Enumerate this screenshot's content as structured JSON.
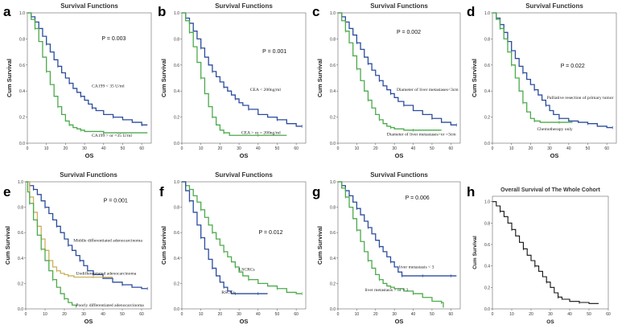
{
  "figure": {
    "background": "#ffffff"
  },
  "chart_data": [
    {
      "id": "a",
      "panel_label": "a",
      "type": "line",
      "title": "Survival Functions",
      "xlabel": "OS",
      "ylabel": "Cum Survival",
      "xlim": [
        0,
        65
      ],
      "ylim": [
        0,
        1
      ],
      "xticks": [
        "0",
        "10",
        "20",
        "30",
        "40",
        "50",
        "60"
      ],
      "yticks": [
        "0.0",
        "0.2",
        "0.4",
        "0.6",
        "0.8",
        "1.0"
      ],
      "p_value": "P = 0.003",
      "series": [
        {
          "name": "CA199 < 35 U/ml",
          "color": "#2b4c9c",
          "x": [
            0,
            2,
            4,
            6,
            8,
            10,
            12,
            14,
            16,
            18,
            20,
            22,
            24,
            26,
            28,
            30,
            32,
            34,
            36,
            40,
            45,
            50,
            55,
            60,
            63
          ],
          "y": [
            1,
            0.97,
            0.93,
            0.88,
            0.82,
            0.76,
            0.7,
            0.64,
            0.59,
            0.54,
            0.5,
            0.46,
            0.42,
            0.39,
            0.36,
            0.33,
            0.3,
            0.27,
            0.25,
            0.22,
            0.2,
            0.18,
            0.16,
            0.14,
            0.14
          ]
        },
        {
          "name": "CA199 > or =35 U/ml",
          "color": "#4caa4c",
          "x": [
            0,
            2,
            4,
            6,
            8,
            10,
            12,
            14,
            16,
            18,
            20,
            22,
            24,
            26,
            28,
            30,
            35,
            40,
            50,
            63
          ],
          "y": [
            1,
            0.95,
            0.88,
            0.78,
            0.66,
            0.55,
            0.45,
            0.36,
            0.28,
            0.22,
            0.17,
            0.14,
            0.12,
            0.11,
            0.1,
            0.09,
            0.09,
            0.08,
            0.08,
            0.08
          ]
        }
      ]
    },
    {
      "id": "b",
      "panel_label": "b",
      "type": "line",
      "title": "Survival Functions",
      "xlabel": "OS",
      "ylabel": "Cum Survival",
      "xlim": [
        0,
        65
      ],
      "ylim": [
        0,
        1
      ],
      "xticks": [
        "0",
        "10",
        "20",
        "30",
        "40",
        "50",
        "60"
      ],
      "yticks": [
        "0.0",
        "0.2",
        "0.4",
        "0.6",
        "0.8",
        "1.0"
      ],
      "p_value": "P = 0.001",
      "series": [
        {
          "name": "CEA < 200ng/ml",
          "color": "#2b4c9c",
          "x": [
            0,
            2,
            4,
            6,
            8,
            10,
            12,
            14,
            16,
            18,
            20,
            22,
            24,
            26,
            28,
            30,
            32,
            35,
            40,
            45,
            50,
            55,
            60,
            63
          ],
          "y": [
            1,
            0.96,
            0.92,
            0.86,
            0.8,
            0.73,
            0.66,
            0.6,
            0.55,
            0.51,
            0.47,
            0.43,
            0.4,
            0.37,
            0.34,
            0.31,
            0.29,
            0.26,
            0.22,
            0.2,
            0.18,
            0.15,
            0.13,
            0.13
          ]
        },
        {
          "name": "CEA > or = 200ng/ml",
          "color": "#4caa4c",
          "x": [
            0,
            2,
            4,
            6,
            8,
            10,
            12,
            14,
            16,
            18,
            20,
            22,
            25,
            30,
            40,
            55
          ],
          "y": [
            1,
            0.94,
            0.85,
            0.74,
            0.62,
            0.5,
            0.38,
            0.28,
            0.2,
            0.14,
            0.1,
            0.08,
            0.06,
            0.06,
            0.06,
            0.06
          ]
        }
      ]
    },
    {
      "id": "c",
      "panel_label": "c",
      "type": "line",
      "title": "Survival Functions",
      "xlabel": "OS",
      "ylabel": "Cum Survival",
      "xlim": [
        0,
        65
      ],
      "ylim": [
        0,
        1
      ],
      "xticks": [
        "0",
        "10",
        "20",
        "30",
        "40",
        "50",
        "60"
      ],
      "yticks": [
        "0.0",
        "0.2",
        "0.4",
        "0.6",
        "0.8",
        "1.0"
      ],
      "p_value": "P = 0.002",
      "series": [
        {
          "name": "Diameter of liver metastases<3cm",
          "color": "#2b4c9c",
          "x": [
            0,
            2,
            4,
            6,
            8,
            10,
            12,
            14,
            16,
            18,
            20,
            22,
            24,
            26,
            28,
            30,
            32,
            35,
            40,
            45,
            50,
            55,
            60,
            63
          ],
          "y": [
            1,
            0.97,
            0.93,
            0.88,
            0.83,
            0.77,
            0.72,
            0.66,
            0.61,
            0.56,
            0.52,
            0.48,
            0.44,
            0.41,
            0.38,
            0.35,
            0.32,
            0.29,
            0.25,
            0.22,
            0.19,
            0.16,
            0.14,
            0.14
          ]
        },
        {
          "name": "Diameter of liver metastases>or =3cm",
          "color": "#4caa4c",
          "x": [
            0,
            2,
            4,
            6,
            8,
            10,
            12,
            14,
            16,
            18,
            20,
            22,
            24,
            26,
            28,
            30,
            35,
            40,
            45,
            55
          ],
          "y": [
            1,
            0.94,
            0.86,
            0.77,
            0.67,
            0.57,
            0.48,
            0.4,
            0.33,
            0.27,
            0.22,
            0.18,
            0.15,
            0.13,
            0.12,
            0.11,
            0.1,
            0.1,
            0.1,
            0.1
          ]
        }
      ]
    },
    {
      "id": "d",
      "panel_label": "d",
      "type": "line",
      "title": "Survival Functions",
      "xlabel": "OS",
      "ylabel": "Cum Survival",
      "xlim": [
        0,
        65
      ],
      "ylim": [
        0,
        1
      ],
      "xticks": [
        "0",
        "10",
        "20",
        "30",
        "40",
        "50",
        "60"
      ],
      "yticks": [
        "0.0",
        "0.2",
        "0.4",
        "0.6",
        "0.8",
        "1.0"
      ],
      "p_value": "P = 0.022",
      "series": [
        {
          "name": "Palliative resection of primary tumor",
          "color": "#2b4c9c",
          "x": [
            0,
            2,
            4,
            6,
            8,
            10,
            12,
            14,
            16,
            18,
            20,
            22,
            24,
            26,
            28,
            30,
            32,
            35,
            40,
            45,
            50,
            55,
            60,
            63
          ],
          "y": [
            1,
            0.96,
            0.91,
            0.85,
            0.78,
            0.71,
            0.65,
            0.59,
            0.54,
            0.49,
            0.45,
            0.41,
            0.37,
            0.33,
            0.29,
            0.25,
            0.22,
            0.19,
            0.17,
            0.16,
            0.15,
            0.13,
            0.12,
            0.12
          ]
        },
        {
          "name": "Chemotherapy only",
          "color": "#4caa4c",
          "x": [
            0,
            2,
            4,
            6,
            8,
            10,
            12,
            14,
            16,
            18,
            20,
            22,
            25,
            30,
            35,
            40,
            42
          ],
          "y": [
            1,
            0.95,
            0.88,
            0.8,
            0.7,
            0.6,
            0.5,
            0.4,
            0.31,
            0.24,
            0.19,
            0.17,
            0.16,
            0.16,
            0.16,
            0.16,
            0.16
          ]
        }
      ]
    },
    {
      "id": "e",
      "panel_label": "e",
      "type": "line",
      "title": "Survival Functions",
      "xlabel": "OS",
      "ylabel": "Cum Survival",
      "xlim": [
        0,
        65
      ],
      "ylim": [
        0,
        1
      ],
      "xticks": [
        "0",
        "10",
        "20",
        "30",
        "40",
        "50",
        "60"
      ],
      "yticks": [
        "0.0",
        "0.2",
        "0.4",
        "0.6",
        "0.8",
        "1.0"
      ],
      "p_value": "P = 0.001",
      "series": [
        {
          "name": "Middle differentiated adenocarcinoma",
          "color": "#2b4c9c",
          "x": [
            0,
            2,
            4,
            6,
            8,
            10,
            12,
            14,
            16,
            18,
            20,
            22,
            24,
            26,
            28,
            30,
            32,
            35,
            40,
            45,
            50,
            55,
            60,
            63
          ],
          "y": [
            1,
            0.97,
            0.94,
            0.9,
            0.85,
            0.8,
            0.75,
            0.7,
            0.65,
            0.6,
            0.55,
            0.5,
            0.46,
            0.42,
            0.38,
            0.34,
            0.3,
            0.27,
            0.24,
            0.21,
            0.19,
            0.17,
            0.16,
            0.16
          ]
        },
        {
          "name": "Undifferentiated adenocarcinoma",
          "color": "#c9b15a",
          "x": [
            0,
            2,
            4,
            6,
            8,
            10,
            12,
            14,
            16,
            18,
            20,
            22,
            25,
            30,
            35,
            40,
            45
          ],
          "y": [
            1,
            0.88,
            0.76,
            0.65,
            0.55,
            0.46,
            0.38,
            0.33,
            0.3,
            0.28,
            0.27,
            0.26,
            0.25,
            0.25,
            0.25,
            0.25,
            0.25
          ]
        },
        {
          "name": "Poorly differentiated adenocarcinoma",
          "color": "#4caa4c",
          "x": [
            0,
            1,
            2,
            4,
            6,
            8,
            10,
            12,
            14,
            16,
            18,
            20,
            22,
            24,
            26
          ],
          "y": [
            1,
            0.92,
            0.83,
            0.7,
            0.58,
            0.47,
            0.38,
            0.3,
            0.23,
            0.17,
            0.12,
            0.08,
            0.05,
            0.03,
            0.02
          ]
        }
      ]
    },
    {
      "id": "f",
      "panel_label": "f",
      "type": "line",
      "title": "Survival Functions",
      "xlabel": "OS",
      "ylabel": "Cum Survival",
      "xlim": [
        0,
        65
      ],
      "ylim": [
        0,
        1
      ],
      "xticks": [
        "0",
        "10",
        "20",
        "30",
        "40",
        "50",
        "60"
      ],
      "yticks": [
        "0.0",
        "0.2",
        "0.4",
        "0.6",
        "0.8",
        "1.0"
      ],
      "p_value": "P = 0.012",
      "series": [
        {
          "name": "LSCRCs",
          "color": "#4caa4c",
          "x": [
            0,
            2,
            4,
            6,
            8,
            10,
            12,
            14,
            16,
            18,
            20,
            22,
            24,
            26,
            28,
            30,
            32,
            35,
            40,
            45,
            50,
            55,
            60,
            63
          ],
          "y": [
            1,
            0.97,
            0.94,
            0.89,
            0.84,
            0.78,
            0.72,
            0.66,
            0.6,
            0.55,
            0.5,
            0.45,
            0.41,
            0.37,
            0.33,
            0.29,
            0.26,
            0.23,
            0.2,
            0.18,
            0.16,
            0.13,
            0.12,
            0.12
          ]
        },
        {
          "name": "RSCCs",
          "color": "#2b4c9c",
          "x": [
            0,
            2,
            4,
            6,
            8,
            10,
            12,
            14,
            16,
            18,
            20,
            22,
            24,
            26,
            28,
            30,
            35,
            40,
            45
          ],
          "y": [
            1,
            0.93,
            0.85,
            0.76,
            0.66,
            0.56,
            0.47,
            0.39,
            0.32,
            0.26,
            0.21,
            0.17,
            0.14,
            0.12,
            0.12,
            0.12,
            0.12,
            0.12,
            0.12
          ]
        }
      ]
    },
    {
      "id": "g",
      "panel_label": "g",
      "type": "line",
      "title": "Survival Functions",
      "xlabel": "OS",
      "ylabel": "Cum Survival",
      "xlim": [
        0,
        65
      ],
      "ylim": [
        0,
        1
      ],
      "xticks": [
        "0",
        "10",
        "20",
        "30",
        "40",
        "50",
        "60"
      ],
      "yticks": [
        "0.0",
        "0.2",
        "0.4",
        "0.6",
        "0.8",
        "1.0"
      ],
      "p_value": "P = 0.006",
      "series": [
        {
          "name": "liver metastasis < 3",
          "color": "#2b4c9c",
          "x": [
            0,
            2,
            4,
            6,
            8,
            10,
            12,
            14,
            16,
            18,
            20,
            22,
            24,
            26,
            28,
            30,
            32,
            34,
            36,
            40,
            45,
            50,
            55,
            60,
            63
          ],
          "y": [
            1,
            0.97,
            0.93,
            0.89,
            0.84,
            0.79,
            0.74,
            0.69,
            0.64,
            0.59,
            0.54,
            0.49,
            0.45,
            0.41,
            0.37,
            0.33,
            0.29,
            0.26,
            0.26,
            0.26,
            0.26,
            0.26,
            0.26,
            0.26,
            0.26
          ]
        },
        {
          "name": "liver metastasis > or = 3",
          "color": "#4caa4c",
          "x": [
            0,
            2,
            4,
            6,
            8,
            10,
            12,
            14,
            16,
            18,
            20,
            22,
            24,
            26,
            28,
            30,
            35,
            40,
            45,
            50,
            55,
            56
          ],
          "y": [
            1,
            0.95,
            0.88,
            0.8,
            0.71,
            0.62,
            0.53,
            0.45,
            0.38,
            0.32,
            0.27,
            0.23,
            0.2,
            0.18,
            0.17,
            0.16,
            0.14,
            0.12,
            0.09,
            0.06,
            0.05,
            0.01
          ]
        }
      ]
    },
    {
      "id": "h",
      "panel_label": "h",
      "type": "line",
      "title": "Overall Survival of The Whole Cohort",
      "xlabel": "OS",
      "ylabel": "Cum Survival",
      "xlim": [
        0,
        60
      ],
      "ylim": [
        0,
        1.05
      ],
      "xticks": [
        "0",
        "10",
        "20",
        "30",
        "40",
        "50",
        "60"
      ],
      "yticks": [
        "0.0",
        "0.2",
        "0.4",
        "0.6",
        "0.8",
        "1.0"
      ],
      "series": [
        {
          "name": "Overall",
          "color": "#111111",
          "x": [
            0,
            2,
            4,
            6,
            8,
            10,
            12,
            14,
            16,
            18,
            20,
            22,
            24,
            26,
            28,
            30,
            32,
            34,
            36,
            40,
            45,
            50,
            55
          ],
          "y": [
            1,
            0.96,
            0.91,
            0.86,
            0.8,
            0.74,
            0.68,
            0.62,
            0.56,
            0.5,
            0.45,
            0.4,
            0.35,
            0.3,
            0.25,
            0.2,
            0.15,
            0.11,
            0.09,
            0.07,
            0.06,
            0.05,
            0.05
          ]
        }
      ]
    }
  ]
}
